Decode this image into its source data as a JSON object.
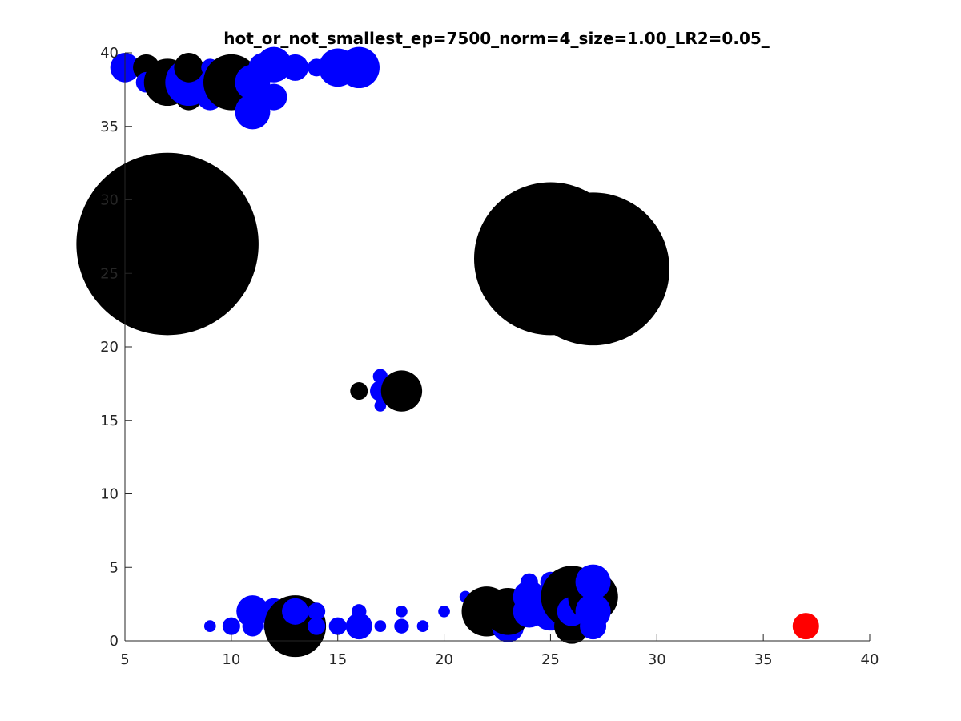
{
  "chart_data": {
    "type": "scatter",
    "title": "hot_or_not_smallest_ep=7500_norm=4_size=1.00_LR2=0.05_",
    "xlabel": "",
    "ylabel": "",
    "xlim": [
      5,
      40
    ],
    "ylim": [
      0,
      40
    ],
    "x_ticks": [
      "5",
      "10",
      "15",
      "20",
      "25",
      "30",
      "35",
      "40"
    ],
    "y_ticks": [
      "0",
      "5",
      "10",
      "15",
      "20",
      "25",
      "30",
      "35",
      "40"
    ],
    "x_tick_values": [
      5,
      10,
      15,
      20,
      25,
      30,
      35,
      40
    ],
    "y_tick_values": [
      0,
      5,
      10,
      15,
      20,
      25,
      30,
      35,
      40
    ],
    "grid": false,
    "box": "left-bottom",
    "colors": {
      "black": "#000000",
      "blue": "#0000ff",
      "red": "#ff0000",
      "axis": "#262626"
    },
    "points": [
      {
        "x": 7,
        "y": 27,
        "r": 6.2,
        "color": "black"
      },
      {
        "x": 7.5,
        "y": 28,
        "r": 4.5,
        "color": "black"
      },
      {
        "x": 25,
        "y": 26,
        "r": 5.2,
        "color": "black"
      },
      {
        "x": 27,
        "y": 25.3,
        "r": 5.2,
        "color": "black"
      },
      {
        "x": 26,
        "y": 26.5,
        "r": 3.5,
        "color": "black"
      },
      {
        "x": 5,
        "y": 39,
        "r": 1.0,
        "color": "blue"
      },
      {
        "x": 6,
        "y": 39,
        "r": 0.9,
        "color": "black"
      },
      {
        "x": 6,
        "y": 38,
        "r": 0.7,
        "color": "blue"
      },
      {
        "x": 7,
        "y": 38,
        "r": 1.6,
        "color": "black"
      },
      {
        "x": 8,
        "y": 37,
        "r": 0.9,
        "color": "black"
      },
      {
        "x": 8,
        "y": 38,
        "r": 1.6,
        "color": "blue"
      },
      {
        "x": 8,
        "y": 39,
        "r": 1.0,
        "color": "black"
      },
      {
        "x": 9,
        "y": 37,
        "r": 0.9,
        "color": "blue"
      },
      {
        "x": 9,
        "y": 39,
        "r": 0.6,
        "color": "blue"
      },
      {
        "x": 10,
        "y": 38,
        "r": 1.9,
        "color": "black"
      },
      {
        "x": 10.5,
        "y": 37.5,
        "r": 1.2,
        "color": "black"
      },
      {
        "x": 11,
        "y": 36,
        "r": 1.2,
        "color": "blue"
      },
      {
        "x": 11,
        "y": 38,
        "r": 1.2,
        "color": "blue"
      },
      {
        "x": 11.5,
        "y": 39,
        "r": 1.0,
        "color": "blue"
      },
      {
        "x": 12,
        "y": 37,
        "r": 0.9,
        "color": "blue"
      },
      {
        "x": 12,
        "y": 39.2,
        "r": 1.2,
        "color": "blue"
      },
      {
        "x": 13,
        "y": 39,
        "r": 0.9,
        "color": "blue"
      },
      {
        "x": 14,
        "y": 39,
        "r": 0.6,
        "color": "blue"
      },
      {
        "x": 15,
        "y": 39,
        "r": 1.3,
        "color": "blue"
      },
      {
        "x": 16,
        "y": 39,
        "r": 1.4,
        "color": "blue"
      },
      {
        "x": 16,
        "y": 17,
        "r": 0.6,
        "color": "black"
      },
      {
        "x": 17,
        "y": 17,
        "r": 0.7,
        "color": "blue"
      },
      {
        "x": 17,
        "y": 18,
        "r": 0.5,
        "color": "blue"
      },
      {
        "x": 17,
        "y": 16,
        "r": 0.4,
        "color": "blue"
      },
      {
        "x": 18,
        "y": 17,
        "r": 1.4,
        "color": "black"
      },
      {
        "x": 9,
        "y": 1,
        "r": 0.4,
        "color": "blue"
      },
      {
        "x": 10,
        "y": 1,
        "r": 0.6,
        "color": "blue"
      },
      {
        "x": 11,
        "y": 2,
        "r": 1.1,
        "color": "blue"
      },
      {
        "x": 11,
        "y": 1,
        "r": 0.7,
        "color": "blue"
      },
      {
        "x": 12,
        "y": 2,
        "r": 0.9,
        "color": "blue"
      },
      {
        "x": 12,
        "y": 1,
        "r": 0.7,
        "color": "blue"
      },
      {
        "x": 13,
        "y": 1,
        "r": 2.1,
        "color": "black"
      },
      {
        "x": 13,
        "y": 2,
        "r": 0.9,
        "color": "blue"
      },
      {
        "x": 14,
        "y": 2,
        "r": 0.6,
        "color": "blue"
      },
      {
        "x": 14,
        "y": 1,
        "r": 0.6,
        "color": "blue"
      },
      {
        "x": 15,
        "y": 1,
        "r": 0.6,
        "color": "blue"
      },
      {
        "x": 16,
        "y": 1,
        "r": 0.9,
        "color": "blue"
      },
      {
        "x": 16,
        "y": 2,
        "r": 0.5,
        "color": "blue"
      },
      {
        "x": 17,
        "y": 1,
        "r": 0.4,
        "color": "blue"
      },
      {
        "x": 18,
        "y": 1,
        "r": 0.5,
        "color": "blue"
      },
      {
        "x": 18,
        "y": 2,
        "r": 0.4,
        "color": "blue"
      },
      {
        "x": 19,
        "y": 1,
        "r": 0.4,
        "color": "blue"
      },
      {
        "x": 20,
        "y": 2,
        "r": 0.4,
        "color": "blue"
      },
      {
        "x": 21,
        "y": 3,
        "r": 0.4,
        "color": "blue"
      },
      {
        "x": 22,
        "y": 3,
        "r": 0.6,
        "color": "blue"
      },
      {
        "x": 22,
        "y": 2,
        "r": 1.7,
        "color": "black"
      },
      {
        "x": 23,
        "y": 1,
        "r": 1.1,
        "color": "blue"
      },
      {
        "x": 23,
        "y": 2,
        "r": 1.6,
        "color": "black"
      },
      {
        "x": 24,
        "y": 2,
        "r": 1.1,
        "color": "blue"
      },
      {
        "x": 24,
        "y": 3,
        "r": 1.1,
        "color": "blue"
      },
      {
        "x": 24,
        "y": 4,
        "r": 0.6,
        "color": "blue"
      },
      {
        "x": 25,
        "y": 2,
        "r": 1.3,
        "color": "blue"
      },
      {
        "x": 25,
        "y": 4,
        "r": 0.7,
        "color": "blue"
      },
      {
        "x": 26,
        "y": 1,
        "r": 1.2,
        "color": "black"
      },
      {
        "x": 26,
        "y": 3,
        "r": 2.1,
        "color": "black"
      },
      {
        "x": 26,
        "y": 2,
        "r": 1.0,
        "color": "blue"
      },
      {
        "x": 27,
        "y": 3,
        "r": 1.7,
        "color": "black"
      },
      {
        "x": 27,
        "y": 1,
        "r": 0.9,
        "color": "blue"
      },
      {
        "x": 27,
        "y": 2,
        "r": 1.2,
        "color": "blue"
      },
      {
        "x": 27,
        "y": 4,
        "r": 1.2,
        "color": "blue"
      },
      {
        "x": 37,
        "y": 1,
        "r": 0.9,
        "color": "red"
      }
    ]
  }
}
